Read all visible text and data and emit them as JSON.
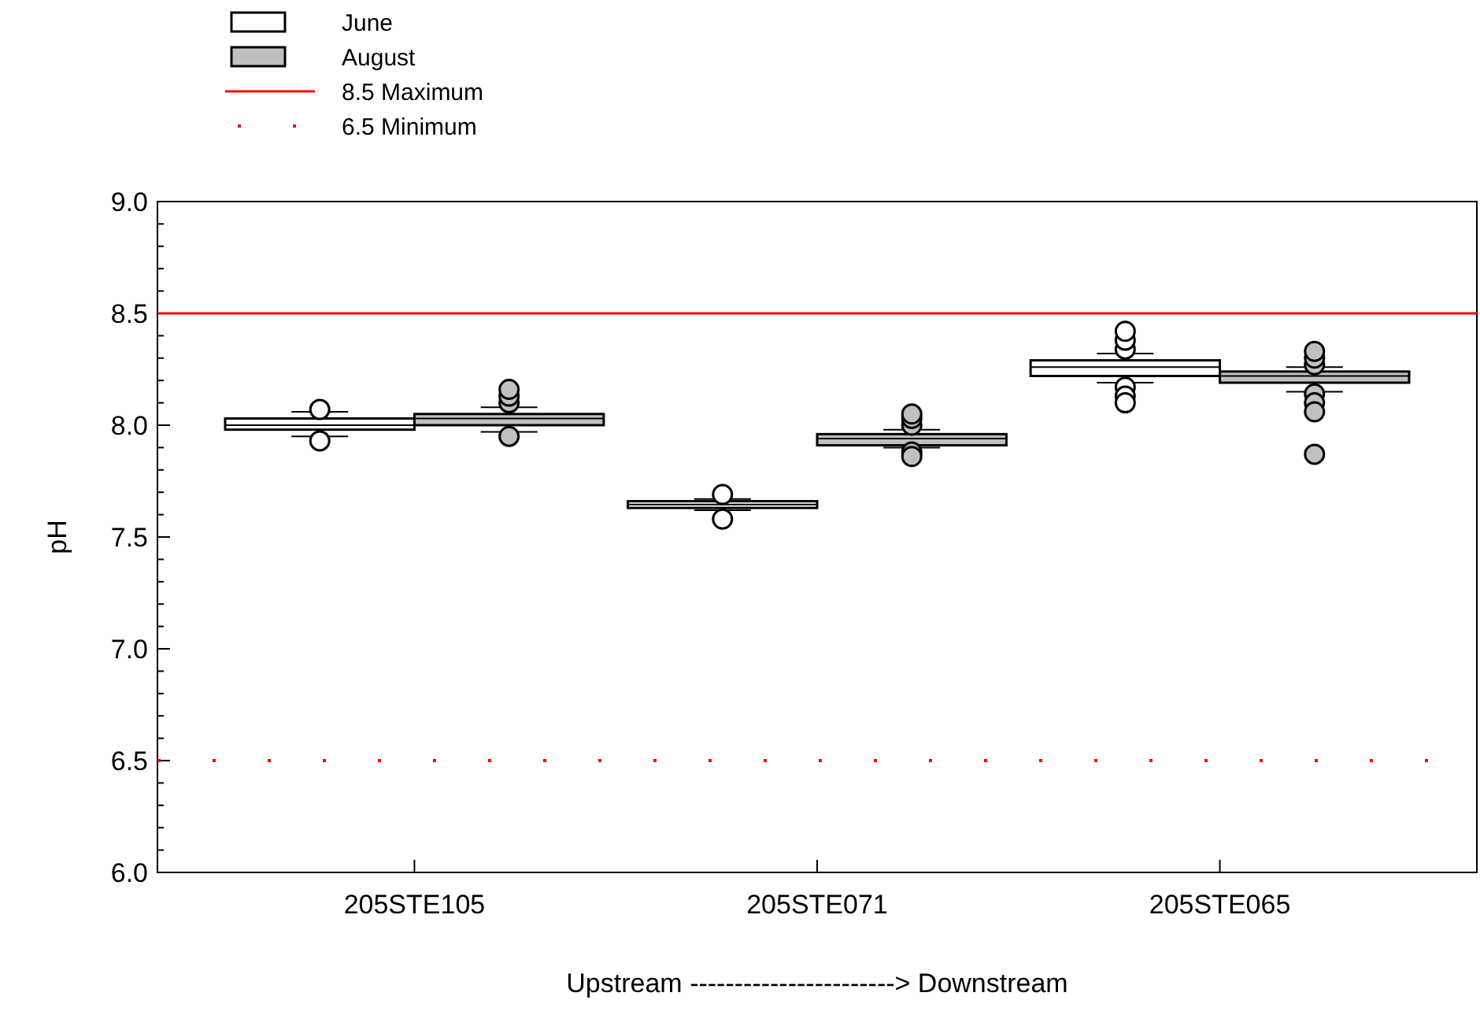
{
  "chart_data": {
    "type": "box",
    "categories": [
      "205STE105",
      "205STE071",
      "205STE065"
    ],
    "series": [
      {
        "name": "June",
        "color": "#ffffff",
        "boxes": [
          {
            "low": 7.95,
            "q1": 7.98,
            "median": 8.0,
            "q3": 8.03,
            "high": 8.06,
            "outliers": [
              8.07,
              7.93
            ]
          },
          {
            "low": 7.62,
            "q1": 7.63,
            "median": 7.645,
            "q3": 7.66,
            "high": 7.67,
            "outliers": [
              7.69,
              7.58
            ]
          },
          {
            "low": 8.19,
            "q1": 8.22,
            "median": 8.26,
            "q3": 8.29,
            "high": 8.32,
            "outliers": [
              8.34,
              8.38,
              8.42,
              8.17,
              8.13,
              8.1
            ]
          }
        ]
      },
      {
        "name": "August",
        "color": "#c0c0c0",
        "boxes": [
          {
            "low": 7.97,
            "q1": 8.0,
            "median": 8.03,
            "q3": 8.05,
            "high": 8.08,
            "outliers": [
              8.1,
              8.13,
              8.16,
              7.95
            ]
          },
          {
            "low": 7.9,
            "q1": 7.91,
            "median": 7.94,
            "q3": 7.96,
            "high": 7.98,
            "outliers": [
              8.0,
              8.03,
              8.05,
              7.88,
              7.86
            ]
          },
          {
            "low": 8.15,
            "q1": 8.19,
            "median": 8.22,
            "q3": 8.24,
            "high": 8.26,
            "outliers": [
              8.27,
              8.3,
              8.33,
              8.14,
              8.1,
              8.06,
              7.87
            ]
          }
        ]
      }
    ],
    "ylabel": "pH",
    "xlabel": "Upstream -----------------------> Downstream",
    "ylim": [
      6.0,
      9.0
    ],
    "yticks": [
      {
        "value": 6.0,
        "label": "6.0"
      },
      {
        "value": 6.1,
        "label": null
      },
      {
        "value": 6.2,
        "label": null
      },
      {
        "value": 6.3,
        "label": null
      },
      {
        "value": 6.4,
        "label": null
      },
      {
        "value": 6.5,
        "label": "6.5"
      },
      {
        "value": 6.6,
        "label": null
      },
      {
        "value": 6.7,
        "label": null
      },
      {
        "value": 6.8,
        "label": null
      },
      {
        "value": 6.9,
        "label": null
      },
      {
        "value": 7.0,
        "label": "7.0"
      },
      {
        "value": 7.1,
        "label": null
      },
      {
        "value": 7.2,
        "label": null
      },
      {
        "value": 7.3,
        "label": null
      },
      {
        "value": 7.4,
        "label": null
      },
      {
        "value": 7.5,
        "label": "7.5"
      },
      {
        "value": 7.6,
        "label": null
      },
      {
        "value": 7.7,
        "label": null
      },
      {
        "value": 7.8,
        "label": null
      },
      {
        "value": 7.9,
        "label": null
      },
      {
        "value": 8.0,
        "label": "8.0"
      },
      {
        "value": 8.1,
        "label": null
      },
      {
        "value": 8.2,
        "label": null
      },
      {
        "value": 8.3,
        "label": null
      },
      {
        "value": 8.4,
        "label": null
      },
      {
        "value": 8.5,
        "label": "8.5"
      },
      {
        "value": 8.6,
        "label": null
      },
      {
        "value": 8.7,
        "label": null
      },
      {
        "value": 8.8,
        "label": null
      },
      {
        "value": 8.9,
        "label": null
      },
      {
        "value": 9.0,
        "label": "9.0"
      }
    ],
    "ref_lines": [
      {
        "axis": "y",
        "value": 8.5,
        "label": "8.5 Maximum",
        "color": "#ff0000",
        "line_style": "solid"
      },
      {
        "axis": "y",
        "value": 6.5,
        "label": "6.5 Minimum",
        "color": "#ff0000",
        "line_style": "dotted"
      }
    ],
    "legend": "top left",
    "grid": false
  }
}
